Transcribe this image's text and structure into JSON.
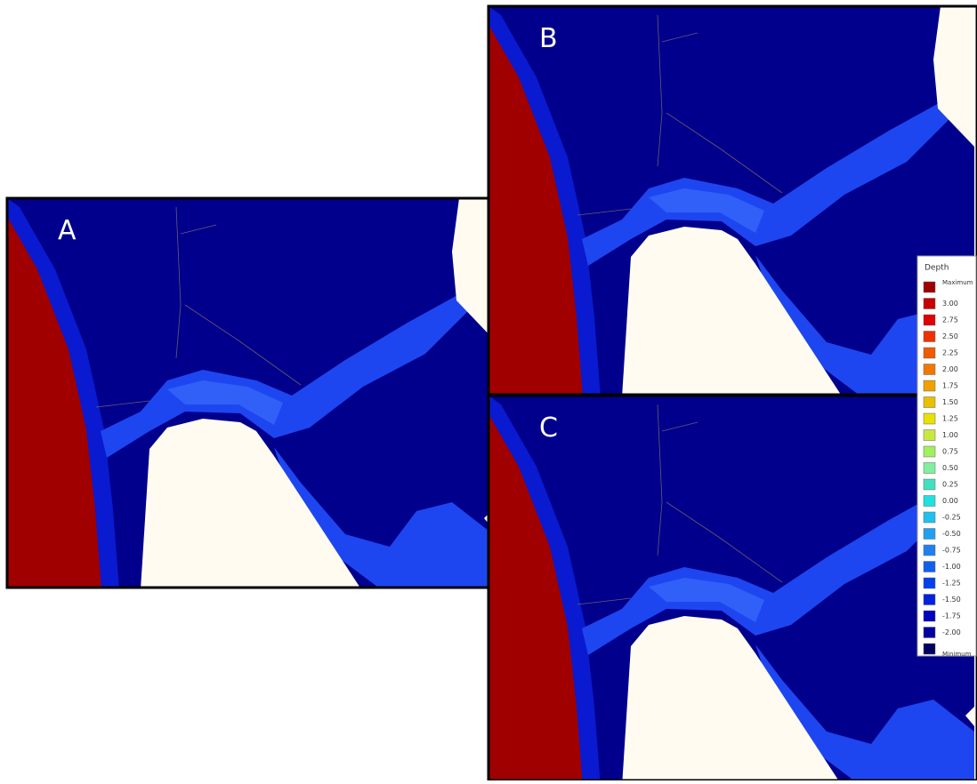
{
  "panels": [
    {
      "label": "A"
    },
    {
      "label": "B"
    },
    {
      "label": "C"
    }
  ],
  "legend": {
    "title": "Depth",
    "entries": [
      {
        "label": "Maximum",
        "color": "#a00000"
      },
      {
        "label": "3.00",
        "color": "#c80000"
      },
      {
        "label": "2.75",
        "color": "#e00000"
      },
      {
        "label": "2.50",
        "color": "#f03000"
      },
      {
        "label": "2.25",
        "color": "#f05a00"
      },
      {
        "label": "2.00",
        "color": "#f07800"
      },
      {
        "label": "1.75",
        "color": "#f0a000"
      },
      {
        "label": "1.50",
        "color": "#e8c000"
      },
      {
        "label": "1.25",
        "color": "#e8e000"
      },
      {
        "label": "1.00",
        "color": "#c8e840"
      },
      {
        "label": "0.75",
        "color": "#a0f060"
      },
      {
        "label": "0.50",
        "color": "#80f0a0"
      },
      {
        "label": "0.25",
        "color": "#40e0c0"
      },
      {
        "label": "0.00",
        "color": "#20e0e0"
      },
      {
        "label": "-0.25",
        "color": "#20c0f0"
      },
      {
        "label": "-0.50",
        "color": "#20a0f0"
      },
      {
        "label": "-0.75",
        "color": "#2080f0"
      },
      {
        "label": "-1.00",
        "color": "#1060f0"
      },
      {
        "label": "-1.25",
        "color": "#0040f0"
      },
      {
        "label": "-1.50",
        "color": "#0020e0"
      },
      {
        "label": "-1.75",
        "color": "#0000c0"
      },
      {
        "label": "-2.00",
        "color": "#0000a0"
      },
      {
        "label": "Minimum",
        "color": "#000060"
      }
    ]
  }
}
